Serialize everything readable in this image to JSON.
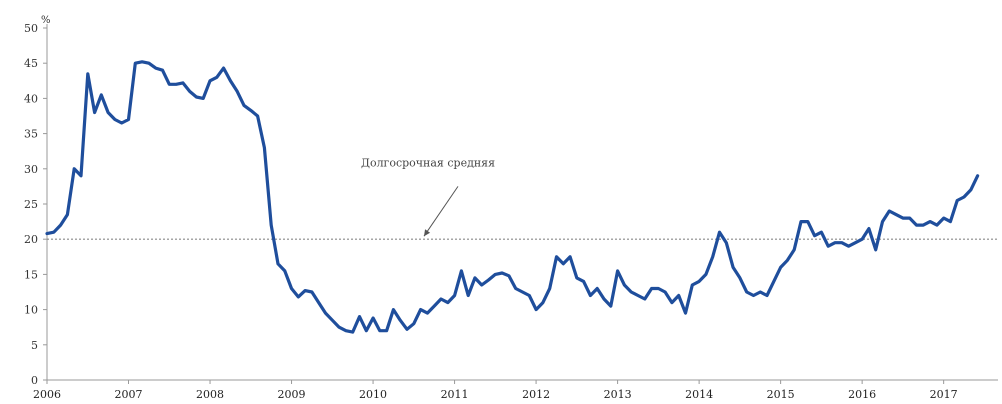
{
  "chart_data": {
    "type": "line",
    "title": "",
    "xlabel": "",
    "ylabel": "%",
    "ylim": [
      0,
      50
    ],
    "xlim": [
      "2006-01",
      "2017-09"
    ],
    "y_ticks": [
      "0",
      "5",
      "10",
      "15",
      "20",
      "25",
      "30",
      "35",
      "40",
      "45",
      "50"
    ],
    "x_ticks": [
      {
        "label": "2006",
        "at": "2006-01"
      },
      {
        "label": "2007",
        "at": "2007-01"
      },
      {
        "label": "2008",
        "at": "2008-01"
      },
      {
        "label": "2009",
        "at": "2009-01"
      },
      {
        "label": "2010",
        "at": "2010-01"
      },
      {
        "label": "2011",
        "at": "2011-01"
      },
      {
        "label": "2012",
        "at": "2012-01"
      },
      {
        "label": "2013",
        "at": "2013-01"
      },
      {
        "label": "2014",
        "at": "2014-01"
      },
      {
        "label": "2015",
        "at": "2015-01"
      },
      {
        "label": "2016",
        "at": "2016-01"
      },
      {
        "label": "2017",
        "at": "2017-01"
      }
    ],
    "grid": false,
    "colors": {
      "series": "#1f4e9c",
      "reference": "#888888",
      "axis": "#999999"
    },
    "reference_line": {
      "value": 20,
      "label": "Долгосрочная средняя"
    },
    "series": [
      {
        "name": "",
        "points": [
          [
            "2006-01",
            20.8
          ],
          [
            "2006-02",
            21.0
          ],
          [
            "2006-03",
            22.0
          ],
          [
            "2006-04",
            23.5
          ],
          [
            "2006-05",
            30.0
          ],
          [
            "2006-06",
            29.0
          ],
          [
            "2006-07",
            43.5
          ],
          [
            "2006-08",
            38.0
          ],
          [
            "2006-09",
            40.5
          ],
          [
            "2006-10",
            38.0
          ],
          [
            "2006-11",
            37.0
          ],
          [
            "2006-12",
            36.5
          ],
          [
            "2007-01",
            37.0
          ],
          [
            "2007-02",
            45.0
          ],
          [
            "2007-03",
            45.2
          ],
          [
            "2007-04",
            45.0
          ],
          [
            "2007-05",
            44.3
          ],
          [
            "2007-06",
            44.0
          ],
          [
            "2007-07",
            42.0
          ],
          [
            "2007-08",
            42.0
          ],
          [
            "2007-09",
            42.2
          ],
          [
            "2007-10",
            41.0
          ],
          [
            "2007-11",
            40.2
          ],
          [
            "2007-12",
            40.0
          ],
          [
            "2008-01",
            42.5
          ],
          [
            "2008-02",
            43.0
          ],
          [
            "2008-03",
            44.3
          ],
          [
            "2008-04",
            42.5
          ],
          [
            "2008-05",
            41.0
          ],
          [
            "2008-06",
            39.0
          ],
          [
            "2008-07",
            38.3
          ],
          [
            "2008-08",
            37.5
          ],
          [
            "2008-09",
            33.0
          ],
          [
            "2008-10",
            22.0
          ],
          [
            "2008-11",
            16.5
          ],
          [
            "2008-12",
            15.5
          ],
          [
            "2009-01",
            13.0
          ],
          [
            "2009-02",
            11.8
          ],
          [
            "2009-03",
            12.7
          ],
          [
            "2009-04",
            12.5
          ],
          [
            "2009-05",
            11.0
          ],
          [
            "2009-06",
            9.5
          ],
          [
            "2009-07",
            8.5
          ],
          [
            "2009-08",
            7.5
          ],
          [
            "2009-09",
            7.0
          ],
          [
            "2009-10",
            6.8
          ],
          [
            "2009-11",
            9.0
          ],
          [
            "2009-12",
            7.0
          ],
          [
            "2010-01",
            8.8
          ],
          [
            "2010-02",
            7.0
          ],
          [
            "2010-03",
            7.0
          ],
          [
            "2010-04",
            10.0
          ],
          [
            "2010-05",
            8.5
          ],
          [
            "2010-06",
            7.2
          ],
          [
            "2010-07",
            8.0
          ],
          [
            "2010-08",
            10.0
          ],
          [
            "2010-09",
            9.5
          ],
          [
            "2010-10",
            10.5
          ],
          [
            "2010-11",
            11.5
          ],
          [
            "2010-12",
            11.0
          ],
          [
            "2011-01",
            12.0
          ],
          [
            "2011-02",
            15.5
          ],
          [
            "2011-03",
            12.0
          ],
          [
            "2011-04",
            14.5
          ],
          [
            "2011-05",
            13.5
          ],
          [
            "2011-06",
            14.2
          ],
          [
            "2011-07",
            15.0
          ],
          [
            "2011-08",
            15.2
          ],
          [
            "2011-09",
            14.8
          ],
          [
            "2011-10",
            13.0
          ],
          [
            "2011-11",
            12.5
          ],
          [
            "2011-12",
            12.0
          ],
          [
            "2012-01",
            10.0
          ],
          [
            "2012-02",
            11.0
          ],
          [
            "2012-03",
            13.0
          ],
          [
            "2012-04",
            17.5
          ],
          [
            "2012-05",
            16.5
          ],
          [
            "2012-06",
            17.5
          ],
          [
            "2012-07",
            14.5
          ],
          [
            "2012-08",
            14.0
          ],
          [
            "2012-09",
            12.0
          ],
          [
            "2012-10",
            13.0
          ],
          [
            "2012-11",
            11.5
          ],
          [
            "2012-12",
            10.5
          ],
          [
            "2013-01",
            15.5
          ],
          [
            "2013-02",
            13.5
          ],
          [
            "2013-03",
            12.5
          ],
          [
            "2013-04",
            12.0
          ],
          [
            "2013-05",
            11.5
          ],
          [
            "2013-06",
            13.0
          ],
          [
            "2013-07",
            13.0
          ],
          [
            "2013-08",
            12.5
          ],
          [
            "2013-09",
            11.0
          ],
          [
            "2013-10",
            12.0
          ],
          [
            "2013-11",
            9.5
          ],
          [
            "2013-12",
            13.5
          ],
          [
            "2014-01",
            14.0
          ],
          [
            "2014-02",
            15.0
          ],
          [
            "2014-03",
            17.5
          ],
          [
            "2014-04",
            21.0
          ],
          [
            "2014-05",
            19.5
          ],
          [
            "2014-06",
            16.0
          ],
          [
            "2014-07",
            14.5
          ],
          [
            "2014-08",
            12.5
          ],
          [
            "2014-09",
            12.0
          ],
          [
            "2014-10",
            12.5
          ],
          [
            "2014-11",
            12.0
          ],
          [
            "2014-12",
            14.0
          ],
          [
            "2015-01",
            16.0
          ],
          [
            "2015-02",
            17.0
          ],
          [
            "2015-03",
            18.5
          ],
          [
            "2015-04",
            22.5
          ],
          [
            "2015-05",
            22.5
          ],
          [
            "2015-06",
            20.5
          ],
          [
            "2015-07",
            21.0
          ],
          [
            "2015-08",
            19.0
          ],
          [
            "2015-09",
            19.5
          ],
          [
            "2015-10",
            19.5
          ],
          [
            "2015-11",
            19.0
          ],
          [
            "2015-12",
            19.5
          ],
          [
            "2016-01",
            20.0
          ],
          [
            "2016-02",
            21.5
          ],
          [
            "2016-03",
            18.5
          ],
          [
            "2016-04",
            22.5
          ],
          [
            "2016-05",
            24.0
          ],
          [
            "2016-06",
            23.5
          ],
          [
            "2016-07",
            23.0
          ],
          [
            "2016-08",
            23.0
          ],
          [
            "2016-09",
            22.0
          ],
          [
            "2016-10",
            22.0
          ],
          [
            "2016-11",
            22.5
          ],
          [
            "2016-12",
            22.0
          ],
          [
            "2017-01",
            23.0
          ],
          [
            "2017-02",
            22.5
          ],
          [
            "2017-03",
            25.5
          ],
          [
            "2017-04",
            26.0
          ],
          [
            "2017-05",
            27.0
          ],
          [
            "2017-06",
            29.0
          ]
        ]
      }
    ]
  }
}
